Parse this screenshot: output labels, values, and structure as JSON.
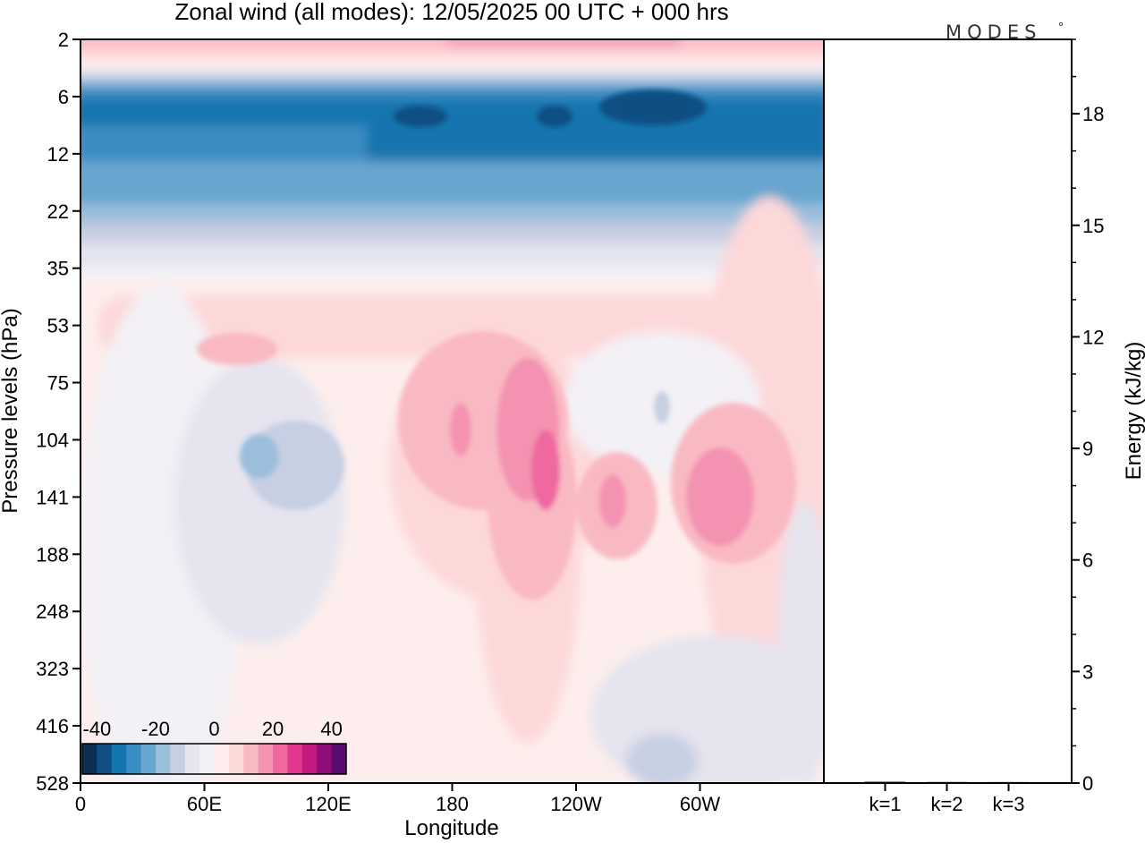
{
  "logo": "MODES",
  "chart_data": [
    {
      "type": "heatmap",
      "title": "Zonal wind (all modes):  12/05/2025  00 UTC  + 000 hrs",
      "xlabel": "Longitude",
      "ylabel": "Pressure levels (hPa)",
      "x_ticks": [
        "0",
        "60E",
        "120E",
        "180",
        "120W",
        "60W"
      ],
      "x_tick_degrees": [
        0,
        60,
        120,
        180,
        240,
        300
      ],
      "x_range": [
        0,
        360
      ],
      "y_ticks": [
        "2",
        "6",
        "12",
        "22",
        "35",
        "53",
        "75",
        "104",
        "141",
        "188",
        "248",
        "323",
        "416",
        "528"
      ],
      "y_scale": "level-index",
      "colorbar": {
        "ticks": [
          "-40",
          "-20",
          "0",
          "20",
          "40"
        ],
        "tick_values": [
          -40,
          -20,
          0,
          20,
          40
        ],
        "range": [
          -45,
          45
        ],
        "step": 5,
        "colors": [
          "#0b2f52",
          "#0f4f83",
          "#1474ae",
          "#3a8dc3",
          "#67a6d0",
          "#9bbedc",
          "#c7cfe3",
          "#e5e4ef",
          "#f3f1f6",
          "#fdeeed",
          "#fdd8d9",
          "#f9b9c2",
          "#f493b1",
          "#ef68a0",
          "#e2368f",
          "#c41a7f",
          "#8f0d77",
          "#5b0a6f"
        ]
      },
      "regions": [
        {
          "name": "upper-easterly-jet",
          "lon": [
            0,
            360
          ],
          "p": [
            5,
            22
          ],
          "value": -30
        },
        {
          "name": "jet-core",
          "lon": [
            190,
            330
          ],
          "p": [
            6,
            10
          ],
          "value": -42
        },
        {
          "name": "stratopause-westerlies",
          "lon": [
            0,
            360
          ],
          "p": [
            2,
            3
          ],
          "value": 15
        },
        {
          "name": "pink-pocket-a",
          "lon": [
            205,
            225
          ],
          "p": [
            95,
            150
          ],
          "value": 25
        },
        {
          "name": "pink-pocket-b",
          "lon": [
            295,
            325
          ],
          "p": [
            105,
            170
          ],
          "value": 22
        },
        {
          "name": "pink-pocket-c",
          "lon": [
            250,
            265
          ],
          "p": [
            125,
            160
          ],
          "value": 17
        },
        {
          "name": "blue-pocket-a",
          "lon": [
            78,
            98
          ],
          "p": [
            100,
            140
          ],
          "value": -10
        },
        {
          "name": "grey-pocket-a",
          "lon": [
            270,
            285
          ],
          "p": [
            75,
            110
          ],
          "value": -4
        }
      ]
    },
    {
      "type": "bar",
      "ylabel": "Energy (kJ/kg)",
      "categories": [
        "k=1",
        "k=2",
        "k=3"
      ],
      "values": [
        0.01,
        0.005,
        0.003
      ],
      "y_ticks": [
        0,
        3,
        6,
        9,
        12,
        15,
        18
      ],
      "ylim": [
        0,
        20
      ]
    }
  ]
}
